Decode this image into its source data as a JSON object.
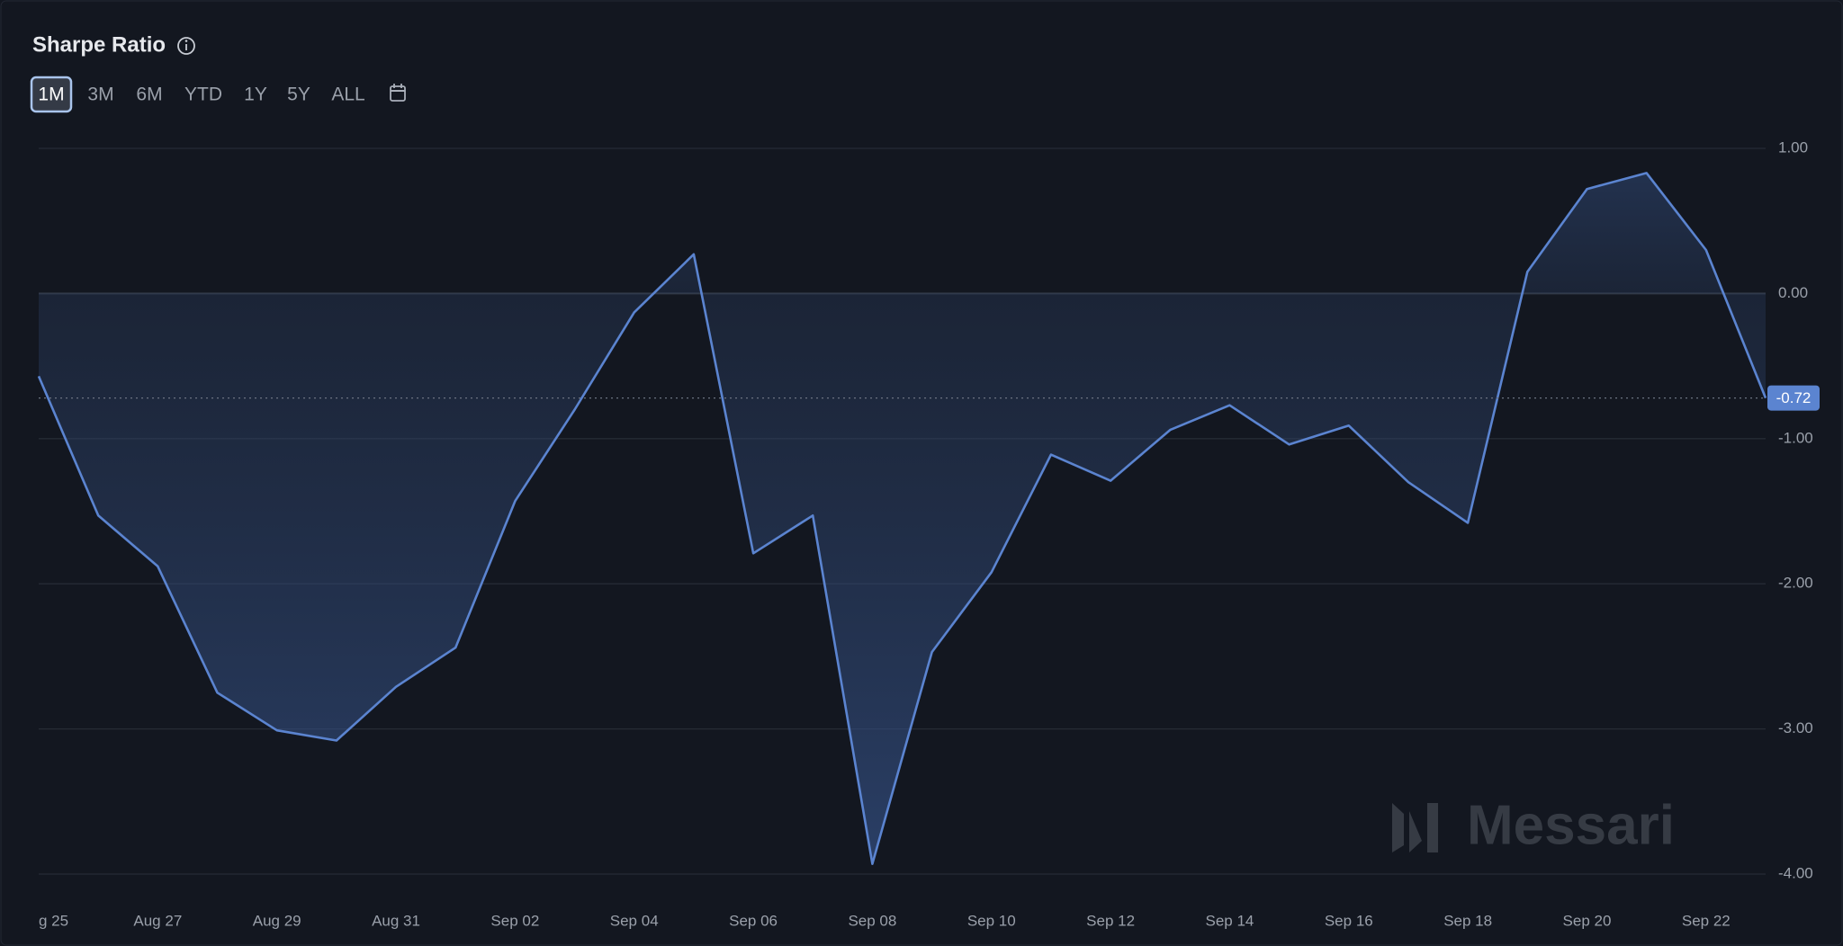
{
  "header": {
    "title": "Sharpe Ratio",
    "range_buttons": [
      "1M",
      "3M",
      "6M",
      "YTD",
      "1Y",
      "5Y",
      "ALL"
    ],
    "active_range": "1M"
  },
  "watermark": "Messari",
  "chart_data": {
    "type": "area",
    "categories": [
      "g 25",
      null,
      "Aug 27",
      null,
      "Aug 29",
      null,
      "Aug 31",
      null,
      "Sep 02",
      null,
      "Sep 04",
      null,
      "Sep 06",
      null,
      "Sep 08",
      null,
      "Sep 10",
      null,
      "Sep 12",
      null,
      "Sep 14",
      null,
      "Sep 16",
      null,
      "Sep 18",
      null,
      "Sep 20",
      null,
      "Sep 22",
      null
    ],
    "values": [
      -0.57,
      -1.53,
      -1.88,
      -2.75,
      -3.01,
      -3.08,
      -2.71,
      -2.44,
      -1.43,
      -0.8,
      -0.13,
      0.27,
      -1.79,
      -1.53,
      -3.93,
      -2.47,
      -1.92,
      -1.11,
      -1.29,
      -0.94,
      -0.77,
      -1.04,
      -0.91,
      -1.3,
      -1.58,
      0.15,
      0.72,
      0.83,
      0.3,
      -0.72
    ],
    "color": "#5b84d0",
    "ylim": [
      -4,
      1
    ],
    "yticks": [
      {
        "value": 1,
        "label": "1.00"
      },
      {
        "value": 0,
        "label": "0.00"
      },
      {
        "value": -1,
        "label": "-1.00"
      },
      {
        "value": -2,
        "label": "-2.00"
      },
      {
        "value": -3,
        "label": "-3.00"
      },
      {
        "value": -4,
        "label": "-4.00"
      }
    ],
    "grid": true
  }
}
